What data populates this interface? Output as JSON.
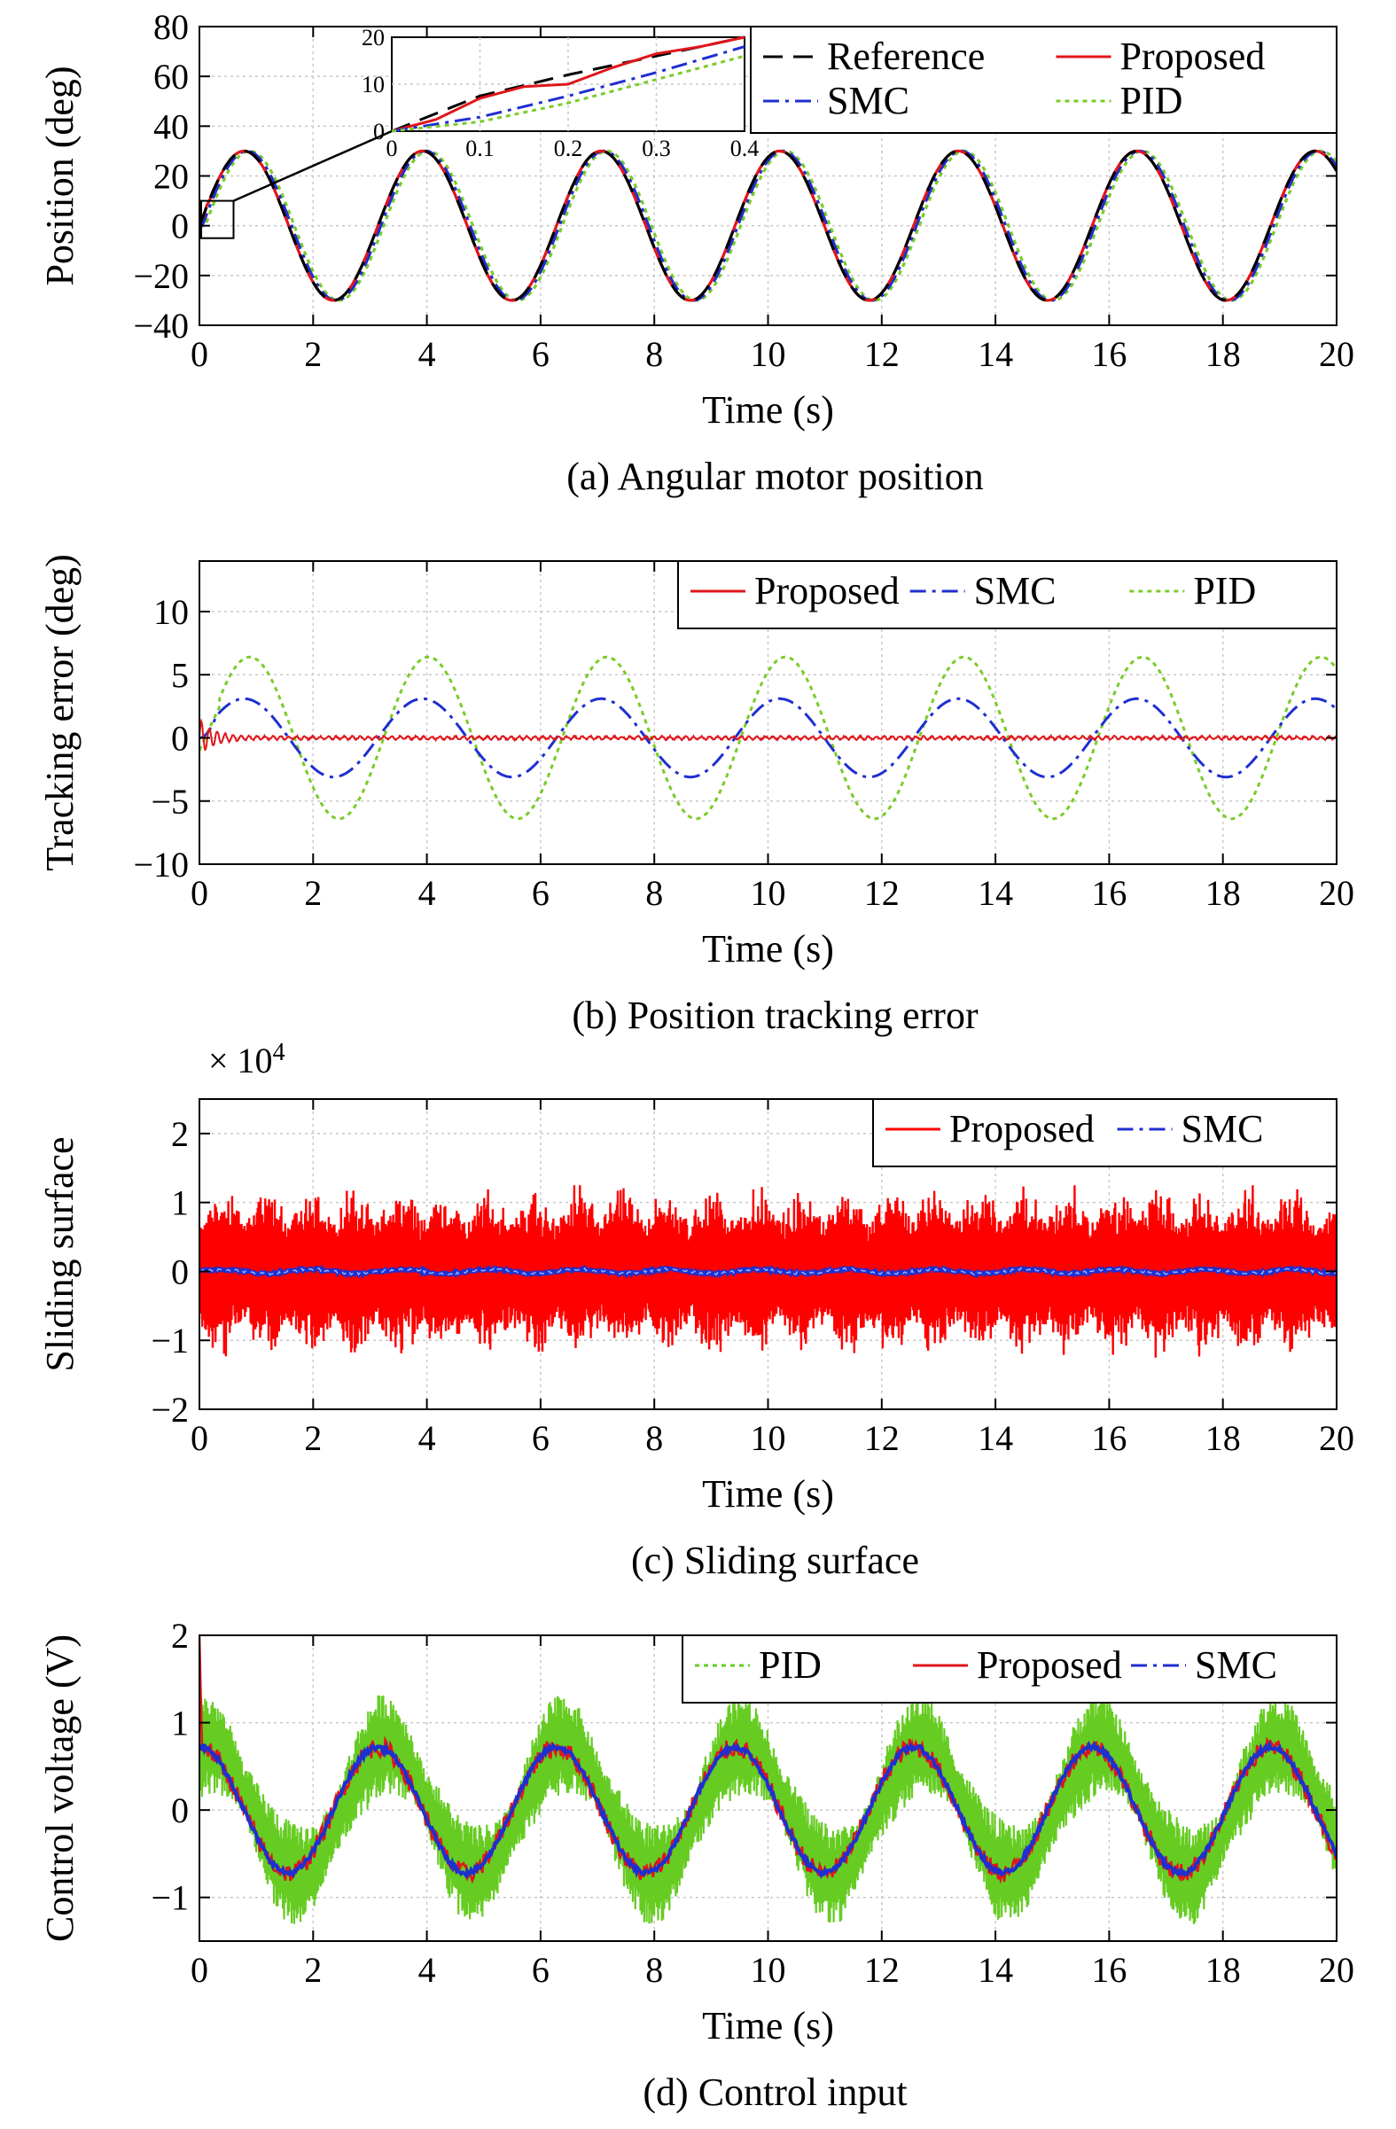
{
  "chart_data": [
    {
      "type": "line",
      "panel": "a",
      "caption": "(a) Angular motor position",
      "xlabel": "Time (s)",
      "ylabel": "Position (deg)",
      "xlim": [
        0,
        20
      ],
      "ylim": [
        -40,
        80
      ],
      "xticks": [
        "0",
        "2",
        "4",
        "6",
        "8",
        "10",
        "12",
        "14",
        "16",
        "18",
        "20"
      ],
      "yticks": [
        "−40",
        "−20",
        "0",
        "20",
        "40",
        "60",
        "80"
      ],
      "grid": true,
      "legend_position": "top-right",
      "series": [
        {
          "name": "Reference",
          "color": "#000000",
          "style": "dashed",
          "amplitude": 30,
          "period_s": 3.14,
          "lag_s": 0.0
        },
        {
          "name": "Proposed",
          "color": "#e0161b",
          "style": "solid",
          "amplitude": 30,
          "period_s": 3.14,
          "lag_s": 0.0
        },
        {
          "name": "SMC",
          "color": "#1f2fd0",
          "style": "dashdot",
          "amplitude": 30,
          "period_s": 3.14,
          "lag_s": 0.05
        },
        {
          "name": "PID",
          "color": "#7acc29",
          "style": "dotted",
          "amplitude": 30,
          "period_s": 3.14,
          "lag_s": 0.1
        }
      ],
      "inset": {
        "xlim": [
          0,
          0.4
        ],
        "ylim": [
          0,
          20
        ],
        "xticks": [
          "0",
          "0.1",
          "0.2",
          "0.3",
          "0.4"
        ],
        "yticks": [
          "0",
          "10",
          "20"
        ],
        "series": [
          {
            "name": "Reference",
            "x": [
              0,
              0.1,
              0.2,
              0.3,
              0.4
            ],
            "y": [
              0,
              7.5,
              12,
              16,
              20
            ]
          },
          {
            "name": "Proposed",
            "x": [
              0,
              0.05,
              0.1,
              0.15,
              0.2,
              0.25,
              0.3,
              0.35,
              0.4
            ],
            "y": [
              0,
              2.5,
              7,
              9.5,
              10,
              13.5,
              16.5,
              18,
              20
            ]
          },
          {
            "name": "SMC",
            "x": [
              0,
              0.1,
              0.2,
              0.3,
              0.4
            ],
            "y": [
              0,
              3,
              7.5,
              12.5,
              18
            ]
          },
          {
            "name": "PID",
            "x": [
              0,
              0.1,
              0.2,
              0.3,
              0.4
            ],
            "y": [
              0,
              2,
              6,
              11,
              16
            ]
          }
        ]
      }
    },
    {
      "type": "line",
      "panel": "b",
      "caption": "(b) Position tracking error",
      "xlabel": "Time (s)",
      "ylabel": "Tracking error (deg)",
      "xlim": [
        0,
        20
      ],
      "ylim": [
        -10,
        14
      ],
      "xticks": [
        "0",
        "2",
        "4",
        "6",
        "8",
        "10",
        "12",
        "14",
        "16",
        "18",
        "20"
      ],
      "yticks": [
        "−10",
        "−5",
        "0",
        "5",
        "10"
      ],
      "grid": true,
      "legend_position": "top-right",
      "series": [
        {
          "name": "Proposed",
          "color": "#e0161b",
          "style": "solid",
          "amplitude": 0.2,
          "period_s": 3.14
        },
        {
          "name": "SMC",
          "color": "#1f2fd0",
          "style": "dashdot",
          "amplitude": 3.1,
          "period_s": 3.14
        },
        {
          "name": "PID",
          "color": "#7acc29",
          "style": "dotted",
          "amplitude": 6.4,
          "period_s": 3.14
        }
      ]
    },
    {
      "type": "line",
      "panel": "c",
      "caption": "(c) Sliding surface",
      "xlabel": "Time (s)",
      "ylabel": "Sliding surface",
      "multiplier": "× 10",
      "multiplier_exp": "4",
      "xlim": [
        0,
        20
      ],
      "ylim": [
        -2,
        2.5
      ],
      "xticks": [
        "0",
        "2",
        "4",
        "6",
        "8",
        "10",
        "12",
        "14",
        "16",
        "18",
        "20"
      ],
      "yticks": [
        "−2",
        "−1",
        "0",
        "1",
        "2"
      ],
      "grid": true,
      "legend_position": "top-right",
      "series": [
        {
          "name": "Proposed",
          "color": "#ff0000",
          "style": "solid",
          "min": -1.6,
          "max": 1.25
        },
        {
          "name": "SMC",
          "color": "#1f2fd0",
          "style": "dashdot",
          "min": -0.05,
          "max": 0.05
        }
      ]
    },
    {
      "type": "line",
      "panel": "d",
      "caption": "(d) Control input",
      "xlabel": "Time (s)",
      "ylabel": "Control voltage (V)",
      "xlim": [
        0,
        20
      ],
      "ylim": [
        -1.5,
        2
      ],
      "xticks": [
        "0",
        "2",
        "4",
        "6",
        "8",
        "10",
        "12",
        "14",
        "16",
        "18",
        "20"
      ],
      "yticks": [
        "−1",
        "0",
        "1",
        "2"
      ],
      "grid": true,
      "legend_position": "top-right",
      "series": [
        {
          "name": "PID",
          "color": "#66cc22",
          "style": "dotted",
          "amplitude": 0.75,
          "period_s": 3.14
        },
        {
          "name": "Proposed",
          "color": "#e0161b",
          "style": "solid",
          "amplitude": 0.72,
          "period_s": 3.14,
          "peak": 1.7
        },
        {
          "name": "SMC",
          "color": "#1f2fd0",
          "style": "dashdot",
          "amplitude": 0.72,
          "period_s": 3.14
        }
      ]
    }
  ]
}
